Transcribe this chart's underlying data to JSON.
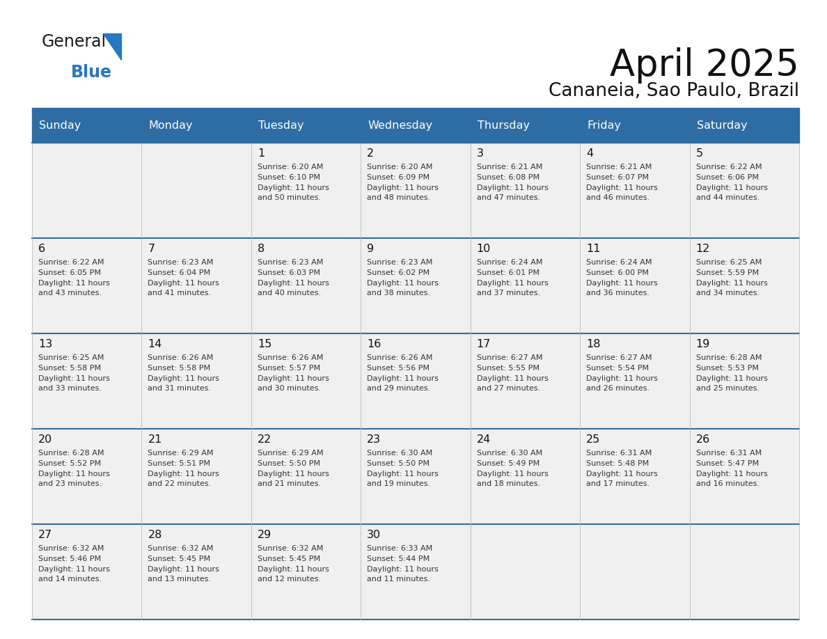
{
  "title": "April 2025",
  "subtitle": "Cananeia, Sao Paulo, Brazil",
  "header_bg": "#2E6DA4",
  "header_text": "#FFFFFF",
  "cell_bg_odd": "#F0F0F0",
  "cell_bg_even": "#FAFAFA",
  "border_color": "#2E6DA4",
  "text_color": "#333333",
  "date_color": "#111111",
  "logo_text_color": "#1a1a1a",
  "logo_blue_color": "#2777C2",
  "day_names": [
    "Sunday",
    "Monday",
    "Tuesday",
    "Wednesday",
    "Thursday",
    "Friday",
    "Saturday"
  ],
  "days": [
    {
      "date": 1,
      "col": 2,
      "row": 0,
      "sunrise": "6:20 AM",
      "sunset": "6:10 PM",
      "daylight_h": "11 hours",
      "daylight_m": "50 minutes."
    },
    {
      "date": 2,
      "col": 3,
      "row": 0,
      "sunrise": "6:20 AM",
      "sunset": "6:09 PM",
      "daylight_h": "11 hours",
      "daylight_m": "48 minutes."
    },
    {
      "date": 3,
      "col": 4,
      "row": 0,
      "sunrise": "6:21 AM",
      "sunset": "6:08 PM",
      "daylight_h": "11 hours",
      "daylight_m": "47 minutes."
    },
    {
      "date": 4,
      "col": 5,
      "row": 0,
      "sunrise": "6:21 AM",
      "sunset": "6:07 PM",
      "daylight_h": "11 hours",
      "daylight_m": "46 minutes."
    },
    {
      "date": 5,
      "col": 6,
      "row": 0,
      "sunrise": "6:22 AM",
      "sunset": "6:06 PM",
      "daylight_h": "11 hours",
      "daylight_m": "44 minutes."
    },
    {
      "date": 6,
      "col": 0,
      "row": 1,
      "sunrise": "6:22 AM",
      "sunset": "6:05 PM",
      "daylight_h": "11 hours",
      "daylight_m": "43 minutes."
    },
    {
      "date": 7,
      "col": 1,
      "row": 1,
      "sunrise": "6:23 AM",
      "sunset": "6:04 PM",
      "daylight_h": "11 hours",
      "daylight_m": "41 minutes."
    },
    {
      "date": 8,
      "col": 2,
      "row": 1,
      "sunrise": "6:23 AM",
      "sunset": "6:03 PM",
      "daylight_h": "11 hours",
      "daylight_m": "40 minutes."
    },
    {
      "date": 9,
      "col": 3,
      "row": 1,
      "sunrise": "6:23 AM",
      "sunset": "6:02 PM",
      "daylight_h": "11 hours",
      "daylight_m": "38 minutes."
    },
    {
      "date": 10,
      "col": 4,
      "row": 1,
      "sunrise": "6:24 AM",
      "sunset": "6:01 PM",
      "daylight_h": "11 hours",
      "daylight_m": "37 minutes."
    },
    {
      "date": 11,
      "col": 5,
      "row": 1,
      "sunrise": "6:24 AM",
      "sunset": "6:00 PM",
      "daylight_h": "11 hours",
      "daylight_m": "36 minutes."
    },
    {
      "date": 12,
      "col": 6,
      "row": 1,
      "sunrise": "6:25 AM",
      "sunset": "5:59 PM",
      "daylight_h": "11 hours",
      "daylight_m": "34 minutes."
    },
    {
      "date": 13,
      "col": 0,
      "row": 2,
      "sunrise": "6:25 AM",
      "sunset": "5:58 PM",
      "daylight_h": "11 hours",
      "daylight_m": "33 minutes."
    },
    {
      "date": 14,
      "col": 1,
      "row": 2,
      "sunrise": "6:26 AM",
      "sunset": "5:58 PM",
      "daylight_h": "11 hours",
      "daylight_m": "31 minutes."
    },
    {
      "date": 15,
      "col": 2,
      "row": 2,
      "sunrise": "6:26 AM",
      "sunset": "5:57 PM",
      "daylight_h": "11 hours",
      "daylight_m": "30 minutes."
    },
    {
      "date": 16,
      "col": 3,
      "row": 2,
      "sunrise": "6:26 AM",
      "sunset": "5:56 PM",
      "daylight_h": "11 hours",
      "daylight_m": "29 minutes."
    },
    {
      "date": 17,
      "col": 4,
      "row": 2,
      "sunrise": "6:27 AM",
      "sunset": "5:55 PM",
      "daylight_h": "11 hours",
      "daylight_m": "27 minutes."
    },
    {
      "date": 18,
      "col": 5,
      "row": 2,
      "sunrise": "6:27 AM",
      "sunset": "5:54 PM",
      "daylight_h": "11 hours",
      "daylight_m": "26 minutes."
    },
    {
      "date": 19,
      "col": 6,
      "row": 2,
      "sunrise": "6:28 AM",
      "sunset": "5:53 PM",
      "daylight_h": "11 hours",
      "daylight_m": "25 minutes."
    },
    {
      "date": 20,
      "col": 0,
      "row": 3,
      "sunrise": "6:28 AM",
      "sunset": "5:52 PM",
      "daylight_h": "11 hours",
      "daylight_m": "23 minutes."
    },
    {
      "date": 21,
      "col": 1,
      "row": 3,
      "sunrise": "6:29 AM",
      "sunset": "5:51 PM",
      "daylight_h": "11 hours",
      "daylight_m": "22 minutes."
    },
    {
      "date": 22,
      "col": 2,
      "row": 3,
      "sunrise": "6:29 AM",
      "sunset": "5:50 PM",
      "daylight_h": "11 hours",
      "daylight_m": "21 minutes."
    },
    {
      "date": 23,
      "col": 3,
      "row": 3,
      "sunrise": "6:30 AM",
      "sunset": "5:50 PM",
      "daylight_h": "11 hours",
      "daylight_m": "19 minutes."
    },
    {
      "date": 24,
      "col": 4,
      "row": 3,
      "sunrise": "6:30 AM",
      "sunset": "5:49 PM",
      "daylight_h": "11 hours",
      "daylight_m": "18 minutes."
    },
    {
      "date": 25,
      "col": 5,
      "row": 3,
      "sunrise": "6:31 AM",
      "sunset": "5:48 PM",
      "daylight_h": "11 hours",
      "daylight_m": "17 minutes."
    },
    {
      "date": 26,
      "col": 6,
      "row": 3,
      "sunrise": "6:31 AM",
      "sunset": "5:47 PM",
      "daylight_h": "11 hours",
      "daylight_m": "16 minutes."
    },
    {
      "date": 27,
      "col": 0,
      "row": 4,
      "sunrise": "6:32 AM",
      "sunset": "5:46 PM",
      "daylight_h": "11 hours",
      "daylight_m": "14 minutes."
    },
    {
      "date": 28,
      "col": 1,
      "row": 4,
      "sunrise": "6:32 AM",
      "sunset": "5:45 PM",
      "daylight_h": "11 hours",
      "daylight_m": "13 minutes."
    },
    {
      "date": 29,
      "col": 2,
      "row": 4,
      "sunrise": "6:32 AM",
      "sunset": "5:45 PM",
      "daylight_h": "11 hours",
      "daylight_m": "12 minutes."
    },
    {
      "date": 30,
      "col": 3,
      "row": 4,
      "sunrise": "6:33 AM",
      "sunset": "5:44 PM",
      "daylight_h": "11 hours",
      "daylight_m": "11 minutes."
    }
  ]
}
